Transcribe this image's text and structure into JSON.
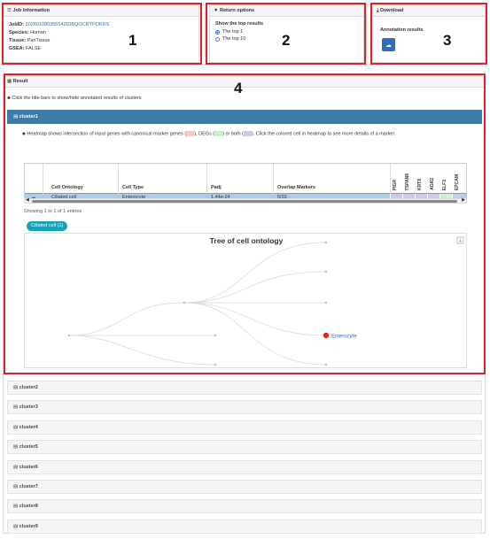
{
  "job_panel": {
    "title": "Job information",
    "jobid_label": "JobID:",
    "jobid_value": "20260108035554ZIDBQOCRYPOKRS",
    "species_label": "Species:",
    "species_value": "Human",
    "tissue_label": "Tissue:",
    "tissue_value": "PanTissue",
    "gsea_label": "GSEA:",
    "gsea_value": "FALSE"
  },
  "return_panel": {
    "title": "Return options",
    "subtitle": "Show the top results",
    "options": [
      "The top 1",
      "The top 10"
    ],
    "selected": "The top 1"
  },
  "download_panel": {
    "title": "Download",
    "annotation_label": "Annotation results"
  },
  "callouts": [
    "1",
    "2",
    "3",
    "4"
  ],
  "result_panel": {
    "title": "Result",
    "hint": "Click the title bars to show/hide annotated results of clusters",
    "active_cluster": "cluster1",
    "heatmap_hint_1": "Heatmap shows intersection of input genes with canonical marker genes (",
    "heatmap_hint_2": "), DEGs (",
    "heatmap_hint_3": ") or both (",
    "heatmap_hint_4": "). Click the colored cell in heatmap to see more details of a marker.",
    "legend_colors": {
      "canonical": "#f7c6c6",
      "degs": "#c9f2c9",
      "both": "#c8c8f5"
    }
  },
  "table": {
    "columns": [
      "Cell Ontology",
      "Cell Type",
      "Padj",
      "Overlap Markers"
    ],
    "gene_columns": [
      "PIGR",
      "TSPAN8",
      "KRT8",
      "AGR2",
      "ELF3",
      "EPCAM"
    ],
    "rows": [
      {
        "cell_ontology": "Ciliated cell",
        "cell_type": "Enterocyte",
        "padj": "1.44e-24",
        "overlap": "5/33"
      }
    ],
    "heat_colors": [
      "#c8c8f5",
      "#c8c8f5",
      "#c8c8f5",
      "#c8c8f5",
      "#c9f2c9",
      "#c8c8f5"
    ],
    "entries_info": "Showing 1 to 1 of 1 entries"
  },
  "pill_label": "Ciliated cell (1)",
  "tree": {
    "title": "Tree of cell ontology",
    "highlight_label": "Enterocyte",
    "highlight_color": "#e8201a"
  },
  "clusters": [
    "cluster2",
    "cluster3",
    "cluster4",
    "cluster5",
    "cluster6",
    "cluster7",
    "cluster8",
    "cluster9"
  ],
  "icons": {
    "job": "list-icon",
    "return": "filter-icon",
    "download": "download-icon",
    "result": "grid-icon",
    "cloud": "cloud-download-icon",
    "tag": "tag-icon",
    "cluster": "bars-icon"
  }
}
